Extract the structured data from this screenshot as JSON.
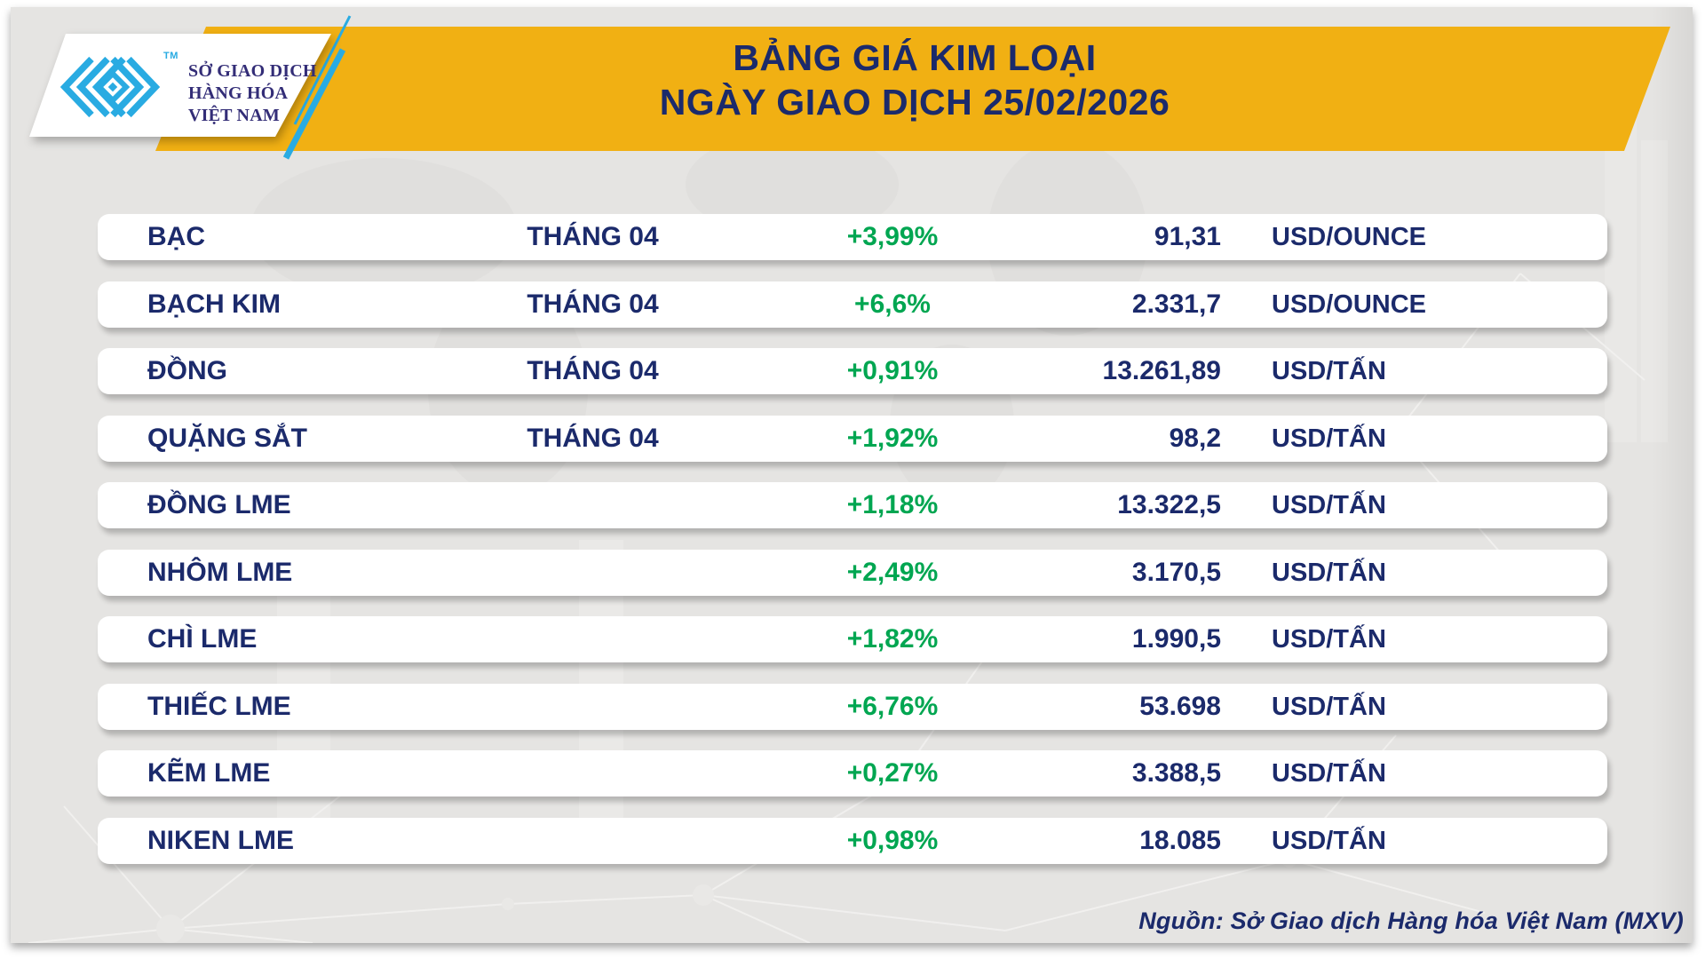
{
  "header": {
    "logo": {
      "org_line1": "SỞ GIAO DỊCH",
      "org_line2": "HÀNG HÓA",
      "org_line3": "VIỆT NAM",
      "trademark": "TM"
    },
    "title_line1": "BẢNG GIÁ KIM LOẠI",
    "title_line2": "NGÀY GIAO DỊCH 25/02/2026"
  },
  "colors": {
    "banner_yellow": "#f1b013",
    "navy_text": "#1b2a6b",
    "positive_green": "#00a651",
    "logo_cyan": "#29abe2",
    "canvas_gray": "#e5e4e2"
  },
  "table": {
    "rows": [
      {
        "name": "BẠC",
        "month": "THÁNG 04",
        "change": "+3,99%",
        "price": "91,31",
        "unit": "USD/OUNCE"
      },
      {
        "name": "BẠCH KIM",
        "month": "THÁNG 04",
        "change": "+6,6%",
        "price": "2.331,7",
        "unit": "USD/OUNCE"
      },
      {
        "name": "ĐỒNG",
        "month": "THÁNG 04",
        "change": "+0,91%",
        "price": "13.261,89",
        "unit": "USD/TẤN"
      },
      {
        "name": "QUẶNG SẮT",
        "month": "THÁNG 04",
        "change": "+1,92%",
        "price": "98,2",
        "unit": "USD/TẤN"
      },
      {
        "name": "ĐỒNG LME",
        "month": "",
        "change": "+1,18%",
        "price": "13.322,5",
        "unit": "USD/TẤN"
      },
      {
        "name": "NHÔM LME",
        "month": "",
        "change": "+2,49%",
        "price": "3.170,5",
        "unit": "USD/TẤN"
      },
      {
        "name": "CHÌ LME",
        "month": "",
        "change": "+1,82%",
        "price": "1.990,5",
        "unit": "USD/TẤN"
      },
      {
        "name": "THIẾC LME",
        "month": "",
        "change": "+6,76%",
        "price": "53.698",
        "unit": "USD/TẤN"
      },
      {
        "name": "KẼM LME",
        "month": "",
        "change": "+0,27%",
        "price": "3.388,5",
        "unit": "USD/TẤN"
      },
      {
        "name": "NIKEN LME",
        "month": "",
        "change": "+0,98%",
        "price": "18.085",
        "unit": "USD/TẤN"
      }
    ]
  },
  "footer": {
    "source": "Nguồn: Sở Giao dịch Hàng hóa Việt Nam (MXV)"
  },
  "chart_data": {
    "type": "table",
    "title": "BẢNG GIÁ KIM LOẠI",
    "subtitle": "NGÀY GIAO DỊCH 25/02/2026",
    "rows": [
      {
        "commodity": "BẠC",
        "contract_month": "THÁNG 04",
        "change_pct": "+3,99%",
        "price": "91,31",
        "unit": "USD/OUNCE"
      },
      {
        "commodity": "BẠCH KIM",
        "contract_month": "THÁNG 04",
        "change_pct": "+6,6%",
        "price": "2.331,7",
        "unit": "USD/OUNCE"
      },
      {
        "commodity": "ĐỒNG",
        "contract_month": "THÁNG 04",
        "change_pct": "+0,91%",
        "price": "13.261,89",
        "unit": "USD/TẤN"
      },
      {
        "commodity": "QUẶNG SẮT",
        "contract_month": "THÁNG 04",
        "change_pct": "+1,92%",
        "price": "98,2",
        "unit": "USD/TẤN"
      },
      {
        "commodity": "ĐỒNG LME",
        "contract_month": "",
        "change_pct": "+1,18%",
        "price": "13.322,5",
        "unit": "USD/TẤN"
      },
      {
        "commodity": "NHÔM LME",
        "contract_month": "",
        "change_pct": "+2,49%",
        "price": "3.170,5",
        "unit": "USD/TẤN"
      },
      {
        "commodity": "CHÌ LME",
        "contract_month": "",
        "change_pct": "+1,82%",
        "price": "1.990,5",
        "unit": "USD/TẤN"
      },
      {
        "commodity": "THIẾC LME",
        "contract_month": "",
        "change_pct": "+6,76%",
        "price": "53.698",
        "unit": "USD/TẤN"
      },
      {
        "commodity": "KẼM LME",
        "contract_month": "",
        "change_pct": "+0,27%",
        "price": "3.388,5",
        "unit": "USD/TẤN"
      },
      {
        "commodity": "NIKEN LME",
        "contract_month": "",
        "change_pct": "+0,98%",
        "price": "18.085",
        "unit": "USD/TẤN"
      }
    ],
    "source": "Nguồn: Sở Giao dịch Hàng hóa Việt Nam (MXV)"
  }
}
